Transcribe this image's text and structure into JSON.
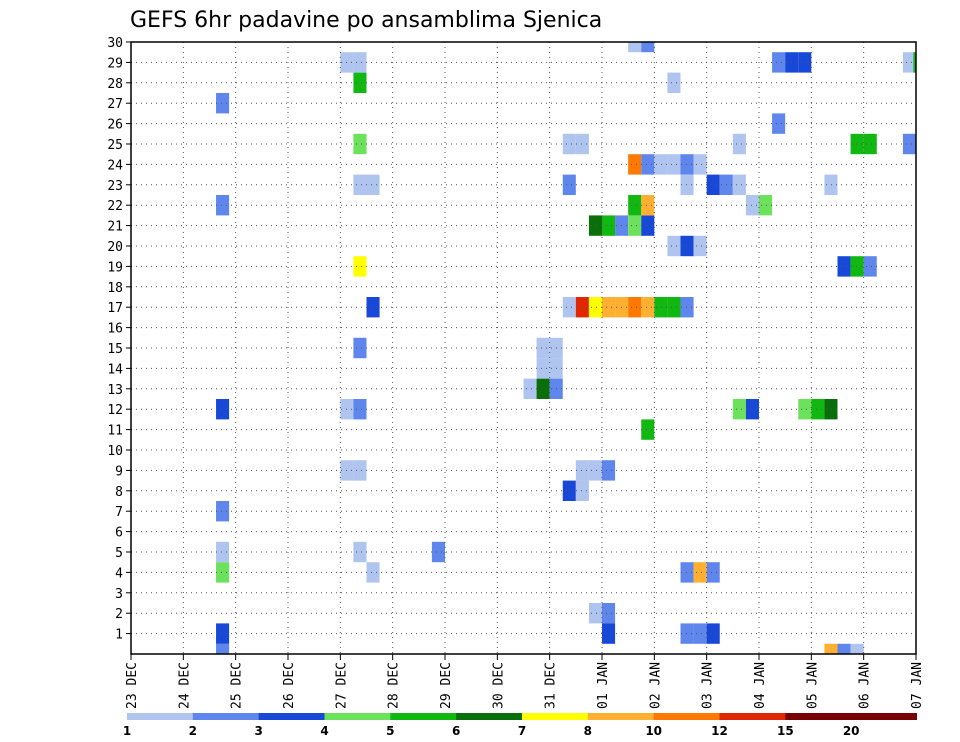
{
  "chart_data": {
    "type": "heatmap",
    "title": "GEFS 6hr padavine po ansamblima Sjenica",
    "x_tick_labels": [
      "23 DEC",
      "24 DEC",
      "25 DEC",
      "26 DEC",
      "27 DEC",
      "28 DEC",
      "29 DEC",
      "30 DEC",
      "31 DEC",
      "01 JAN",
      "02 JAN",
      "03 JAN",
      "04 JAN",
      "05 JAN",
      "06 JAN",
      "07 JAN"
    ],
    "y_tick_labels": [
      "1",
      "2",
      "3",
      "4",
      "5",
      "6",
      "7",
      "8",
      "9",
      "10",
      "11",
      "12",
      "13",
      "14",
      "15",
      "16",
      "17",
      "18",
      "19",
      "20",
      "21",
      "22",
      "23",
      "24",
      "25",
      "26",
      "27",
      "28",
      "29",
      "30"
    ],
    "xlim_days": [
      0,
      15
    ],
    "ylim": [
      0,
      30
    ],
    "grid": true,
    "legend_position": "bottom",
    "colorbar": {
      "colors": [
        "#b0c4f0",
        "#5e86ec",
        "#1848d8",
        "#6ce25c",
        "#12b812",
        "#0a6e0a",
        "#ffff00",
        "#ffb030",
        "#ff7800",
        "#e02800",
        "#780000"
      ],
      "labels": [
        "1",
        "2",
        "3",
        "4",
        "5",
        "6",
        "7",
        "8",
        "10",
        "12",
        "15",
        "20"
      ]
    },
    "cells": [
      {
        "x": 1.625,
        "y": 0,
        "c": 1
      },
      {
        "x": 1.625,
        "y": 1,
        "c": 2
      },
      {
        "x": 1.625,
        "y": 4,
        "c": 3
      },
      {
        "x": 1.625,
        "y": 5,
        "c": 0
      },
      {
        "x": 1.625,
        "y": 7,
        "c": 1
      },
      {
        "x": 1.625,
        "y": 12,
        "c": 2
      },
      {
        "x": 1.625,
        "y": 22,
        "c": 1
      },
      {
        "x": 1.625,
        "y": 27,
        "c": 1
      },
      {
        "x": 4.0,
        "y": 9,
        "c": 0
      },
      {
        "x": 4.25,
        "y": 9,
        "c": 0
      },
      {
        "x": 4.0,
        "y": 12,
        "c": 0
      },
      {
        "x": 4.25,
        "y": 12,
        "c": 1
      },
      {
        "x": 4.25,
        "y": 15,
        "c": 1
      },
      {
        "x": 4.5,
        "y": 17,
        "c": 2
      },
      {
        "x": 4.25,
        "y": 19,
        "c": 6
      },
      {
        "x": 4.25,
        "y": 23,
        "c": 0
      },
      {
        "x": 4.5,
        "y": 23,
        "c": 0
      },
      {
        "x": 4.25,
        "y": 25,
        "c": 3
      },
      {
        "x": 4.25,
        "y": 28,
        "c": 4
      },
      {
        "x": 4.0,
        "y": 29,
        "c": 0
      },
      {
        "x": 4.25,
        "y": 29,
        "c": 0
      },
      {
        "x": 4.25,
        "y": 5,
        "c": 0
      },
      {
        "x": 4.5,
        "y": 4,
        "c": 0
      },
      {
        "x": 5.75,
        "y": 5,
        "c": 1
      },
      {
        "x": 7.5,
        "y": 13,
        "c": 0
      },
      {
        "x": 7.75,
        "y": 13,
        "c": 5
      },
      {
        "x": 8.0,
        "y": 13,
        "c": 1
      },
      {
        "x": 7.75,
        "y": 14,
        "c": 0
      },
      {
        "x": 8.0,
        "y": 14,
        "c": 0
      },
      {
        "x": 7.75,
        "y": 15,
        "c": 0
      },
      {
        "x": 8.0,
        "y": 15,
        "c": 0
      },
      {
        "x": 8.25,
        "y": 8,
        "c": 2
      },
      {
        "x": 8.5,
        "y": 8,
        "c": 0
      },
      {
        "x": 8.5,
        "y": 9,
        "c": 0
      },
      {
        "x": 8.75,
        "y": 9,
        "c": 0
      },
      {
        "x": 9.0,
        "y": 9,
        "c": 1
      },
      {
        "x": 8.75,
        "y": 2,
        "c": 0
      },
      {
        "x": 9.0,
        "y": 2,
        "c": 1
      },
      {
        "x": 9.0,
        "y": 1,
        "c": 2
      },
      {
        "x": 8.25,
        "y": 17,
        "c": 0
      },
      {
        "x": 8.5,
        "y": 17,
        "c": 9
      },
      {
        "x": 8.75,
        "y": 17,
        "c": 6
      },
      {
        "x": 9.0,
        "y": 17,
        "c": 7
      },
      {
        "x": 9.25,
        "y": 17,
        "c": 7
      },
      {
        "x": 9.5,
        "y": 17,
        "c": 8
      },
      {
        "x": 9.75,
        "y": 17,
        "c": 7
      },
      {
        "x": 10.0,
        "y": 17,
        "c": 4
      },
      {
        "x": 10.25,
        "y": 17,
        "c": 4
      },
      {
        "x": 10.5,
        "y": 17,
        "c": 1
      },
      {
        "x": 8.25,
        "y": 23,
        "c": 1
      },
      {
        "x": 8.25,
        "y": 25,
        "c": 0
      },
      {
        "x": 8.5,
        "y": 25,
        "c": 0
      },
      {
        "x": 8.75,
        "y": 21,
        "c": 5
      },
      {
        "x": 9.0,
        "y": 21,
        "c": 4
      },
      {
        "x": 9.25,
        "y": 21,
        "c": 1
      },
      {
        "x": 9.5,
        "y": 21,
        "c": 3
      },
      {
        "x": 9.75,
        "y": 21,
        "c": 2
      },
      {
        "x": 9.5,
        "y": 22,
        "c": 4
      },
      {
        "x": 9.75,
        "y": 22,
        "c": 7
      },
      {
        "x": 9.5,
        "y": 24,
        "c": 8
      },
      {
        "x": 9.75,
        "y": 24,
        "c": 1
      },
      {
        "x": 10.0,
        "y": 24,
        "c": 0
      },
      {
        "x": 10.25,
        "y": 24,
        "c": 0
      },
      {
        "x": 10.5,
        "y": 24,
        "c": 1
      },
      {
        "x": 10.75,
        "y": 24,
        "c": 0
      },
      {
        "x": 10.5,
        "y": 23,
        "c": 0
      },
      {
        "x": 9.5,
        "y": 30,
        "c": 0
      },
      {
        "x": 9.75,
        "y": 30,
        "c": 1
      },
      {
        "x": 9.75,
        "y": 11,
        "c": 4
      },
      {
        "x": 10.25,
        "y": 28,
        "c": 0
      },
      {
        "x": 10.25,
        "y": 20,
        "c": 0
      },
      {
        "x": 10.5,
        "y": 20,
        "c": 2
      },
      {
        "x": 10.75,
        "y": 20,
        "c": 0
      },
      {
        "x": 10.5,
        "y": 4,
        "c": 1
      },
      {
        "x": 10.75,
        "y": 4,
        "c": 7
      },
      {
        "x": 11.0,
        "y": 4,
        "c": 1
      },
      {
        "x": 10.5,
        "y": 1,
        "c": 1
      },
      {
        "x": 10.75,
        "y": 1,
        "c": 1
      },
      {
        "x": 11.0,
        "y": 1,
        "c": 2
      },
      {
        "x": 11.0,
        "y": 23,
        "c": 2
      },
      {
        "x": 11.25,
        "y": 23,
        "c": 1
      },
      {
        "x": 11.5,
        "y": 23,
        "c": 0
      },
      {
        "x": 11.5,
        "y": 12,
        "c": 3
      },
      {
        "x": 11.75,
        "y": 12,
        "c": 2
      },
      {
        "x": 11.5,
        "y": 25,
        "c": 0
      },
      {
        "x": 11.75,
        "y": 22,
        "c": 0
      },
      {
        "x": 12.0,
        "y": 22,
        "c": 3
      },
      {
        "x": 12.25,
        "y": 26,
        "c": 1
      },
      {
        "x": 12.25,
        "y": 29,
        "c": 1
      },
      {
        "x": 12.5,
        "y": 29,
        "c": 2
      },
      {
        "x": 12.75,
        "y": 29,
        "c": 2
      },
      {
        "x": 12.75,
        "y": 12,
        "c": 3
      },
      {
        "x": 13.0,
        "y": 12,
        "c": 4
      },
      {
        "x": 13.25,
        "y": 12,
        "c": 5
      },
      {
        "x": 13.25,
        "y": 23,
        "c": 0
      },
      {
        "x": 13.5,
        "y": 19,
        "c": 2
      },
      {
        "x": 13.75,
        "y": 19,
        "c": 4
      },
      {
        "x": 14.0,
        "y": 19,
        "c": 1
      },
      {
        "x": 13.75,
        "y": 25,
        "c": 4
      },
      {
        "x": 14.0,
        "y": 25,
        "c": 4
      },
      {
        "x": 14.75,
        "y": 25,
        "c": 1
      },
      {
        "x": 14.75,
        "y": 29,
        "c": 0
      },
      {
        "x": 14.95,
        "y": 29,
        "c": 4
      },
      {
        "x": 13.25,
        "y": 0,
        "c": 7
      },
      {
        "x": 13.5,
        "y": 0,
        "c": 1
      },
      {
        "x": 13.75,
        "y": 0,
        "c": 0
      }
    ]
  }
}
